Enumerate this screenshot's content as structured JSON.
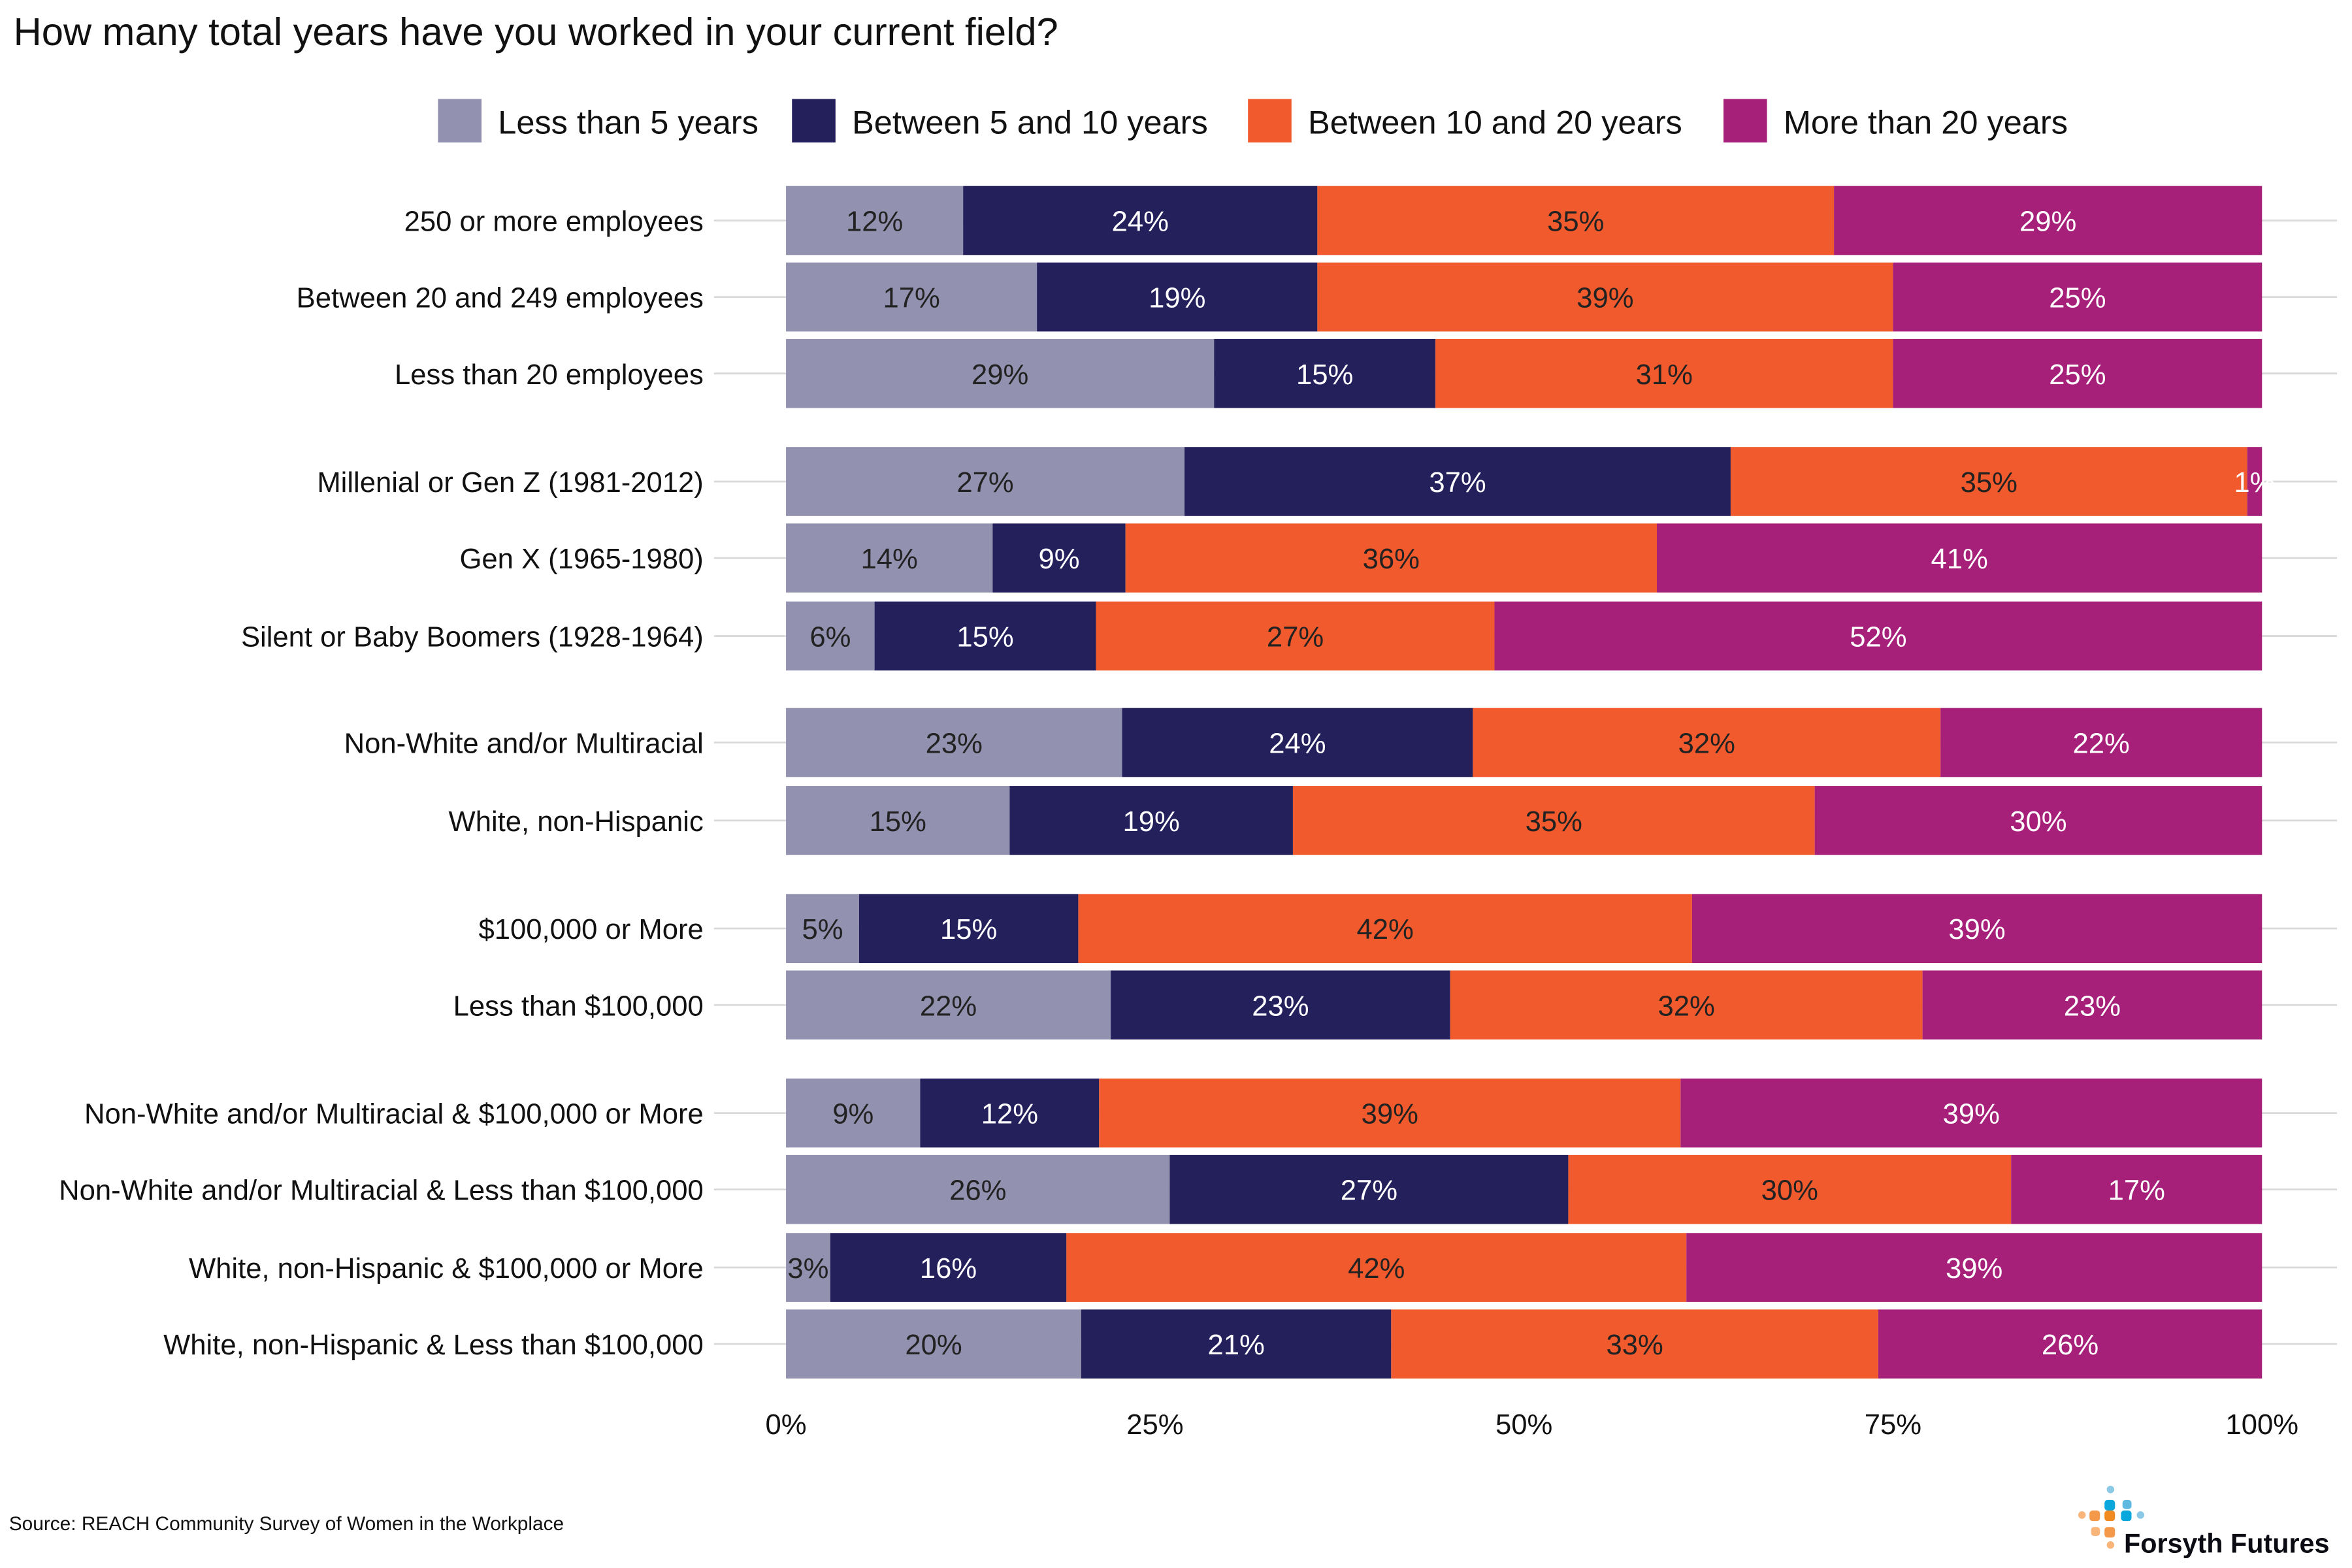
{
  "chart_data": {
    "type": "bar",
    "orientation": "horizontal",
    "stacked": "percent",
    "title": "How many total years have you worked in your current field?",
    "legend_position": "top",
    "series": [
      {
        "name": "Less than 5 years",
        "color": "#9291AF",
        "label_color": "#222222"
      },
      {
        "name": "Between 5 and 10 years",
        "color": "#24205C",
        "label_color": "#FFFFFF"
      },
      {
        "name": "Between 10 and 20 years",
        "color": "#F05A2C",
        "label_color": "#222222"
      },
      {
        "name": "More than 20 years",
        "color": "#A6207A",
        "label_color": "#FFFFFF"
      }
    ],
    "groups": [
      {
        "rows": [
          {
            "category": "250 or more employees",
            "values": [
              12,
              24,
              35,
              29
            ]
          },
          {
            "category": "Between 20 and 249 employees",
            "values": [
              17,
              19,
              39,
              25
            ]
          },
          {
            "category": "Less than 20 employees",
            "values": [
              29,
              15,
              31,
              25
            ]
          }
        ]
      },
      {
        "rows": [
          {
            "category": "Millenial or Gen Z (1981-2012)",
            "values": [
              27,
              37,
              35,
              1
            ]
          },
          {
            "category": "Gen X (1965-1980)",
            "values": [
              14,
              9,
              36,
              41
            ]
          },
          {
            "category": "Silent or Baby Boomers (1928-1964)",
            "values": [
              6,
              15,
              27,
              52
            ]
          }
        ]
      },
      {
        "rows": [
          {
            "category": "Non-White and/or Multiracial",
            "values": [
              23,
              24,
              32,
              22
            ]
          },
          {
            "category": "White, non-Hispanic",
            "values": [
              15,
              19,
              35,
              30
            ]
          }
        ]
      },
      {
        "rows": [
          {
            "category": "$100,000 or More",
            "values": [
              5,
              15,
              42,
              39
            ]
          },
          {
            "category": "Less than $100,000",
            "values": [
              22,
              23,
              32,
              23
            ]
          }
        ]
      },
      {
        "rows": [
          {
            "category": "Non-White and/or Multiracial & $100,000 or More",
            "values": [
              9,
              12,
              39,
              39
            ]
          },
          {
            "category": "Non-White and/or Multiracial & Less than $100,000",
            "values": [
              26,
              27,
              30,
              17
            ]
          },
          {
            "category": "White, non-Hispanic & $100,000 or More",
            "values": [
              3,
              16,
              42,
              39
            ]
          },
          {
            "category": "White, non-Hispanic & Less than $100,000",
            "values": [
              20,
              21,
              33,
              26
            ]
          }
        ]
      }
    ],
    "xlim": [
      0,
      100
    ],
    "xticks": [
      "0%",
      "25%",
      "50%",
      "75%",
      "100%"
    ],
    "grid": "horizontal lines per row",
    "source": "Source: REACH Community Survey of Women in the Workplace",
    "logo_text": "Forsyth Futures"
  }
}
